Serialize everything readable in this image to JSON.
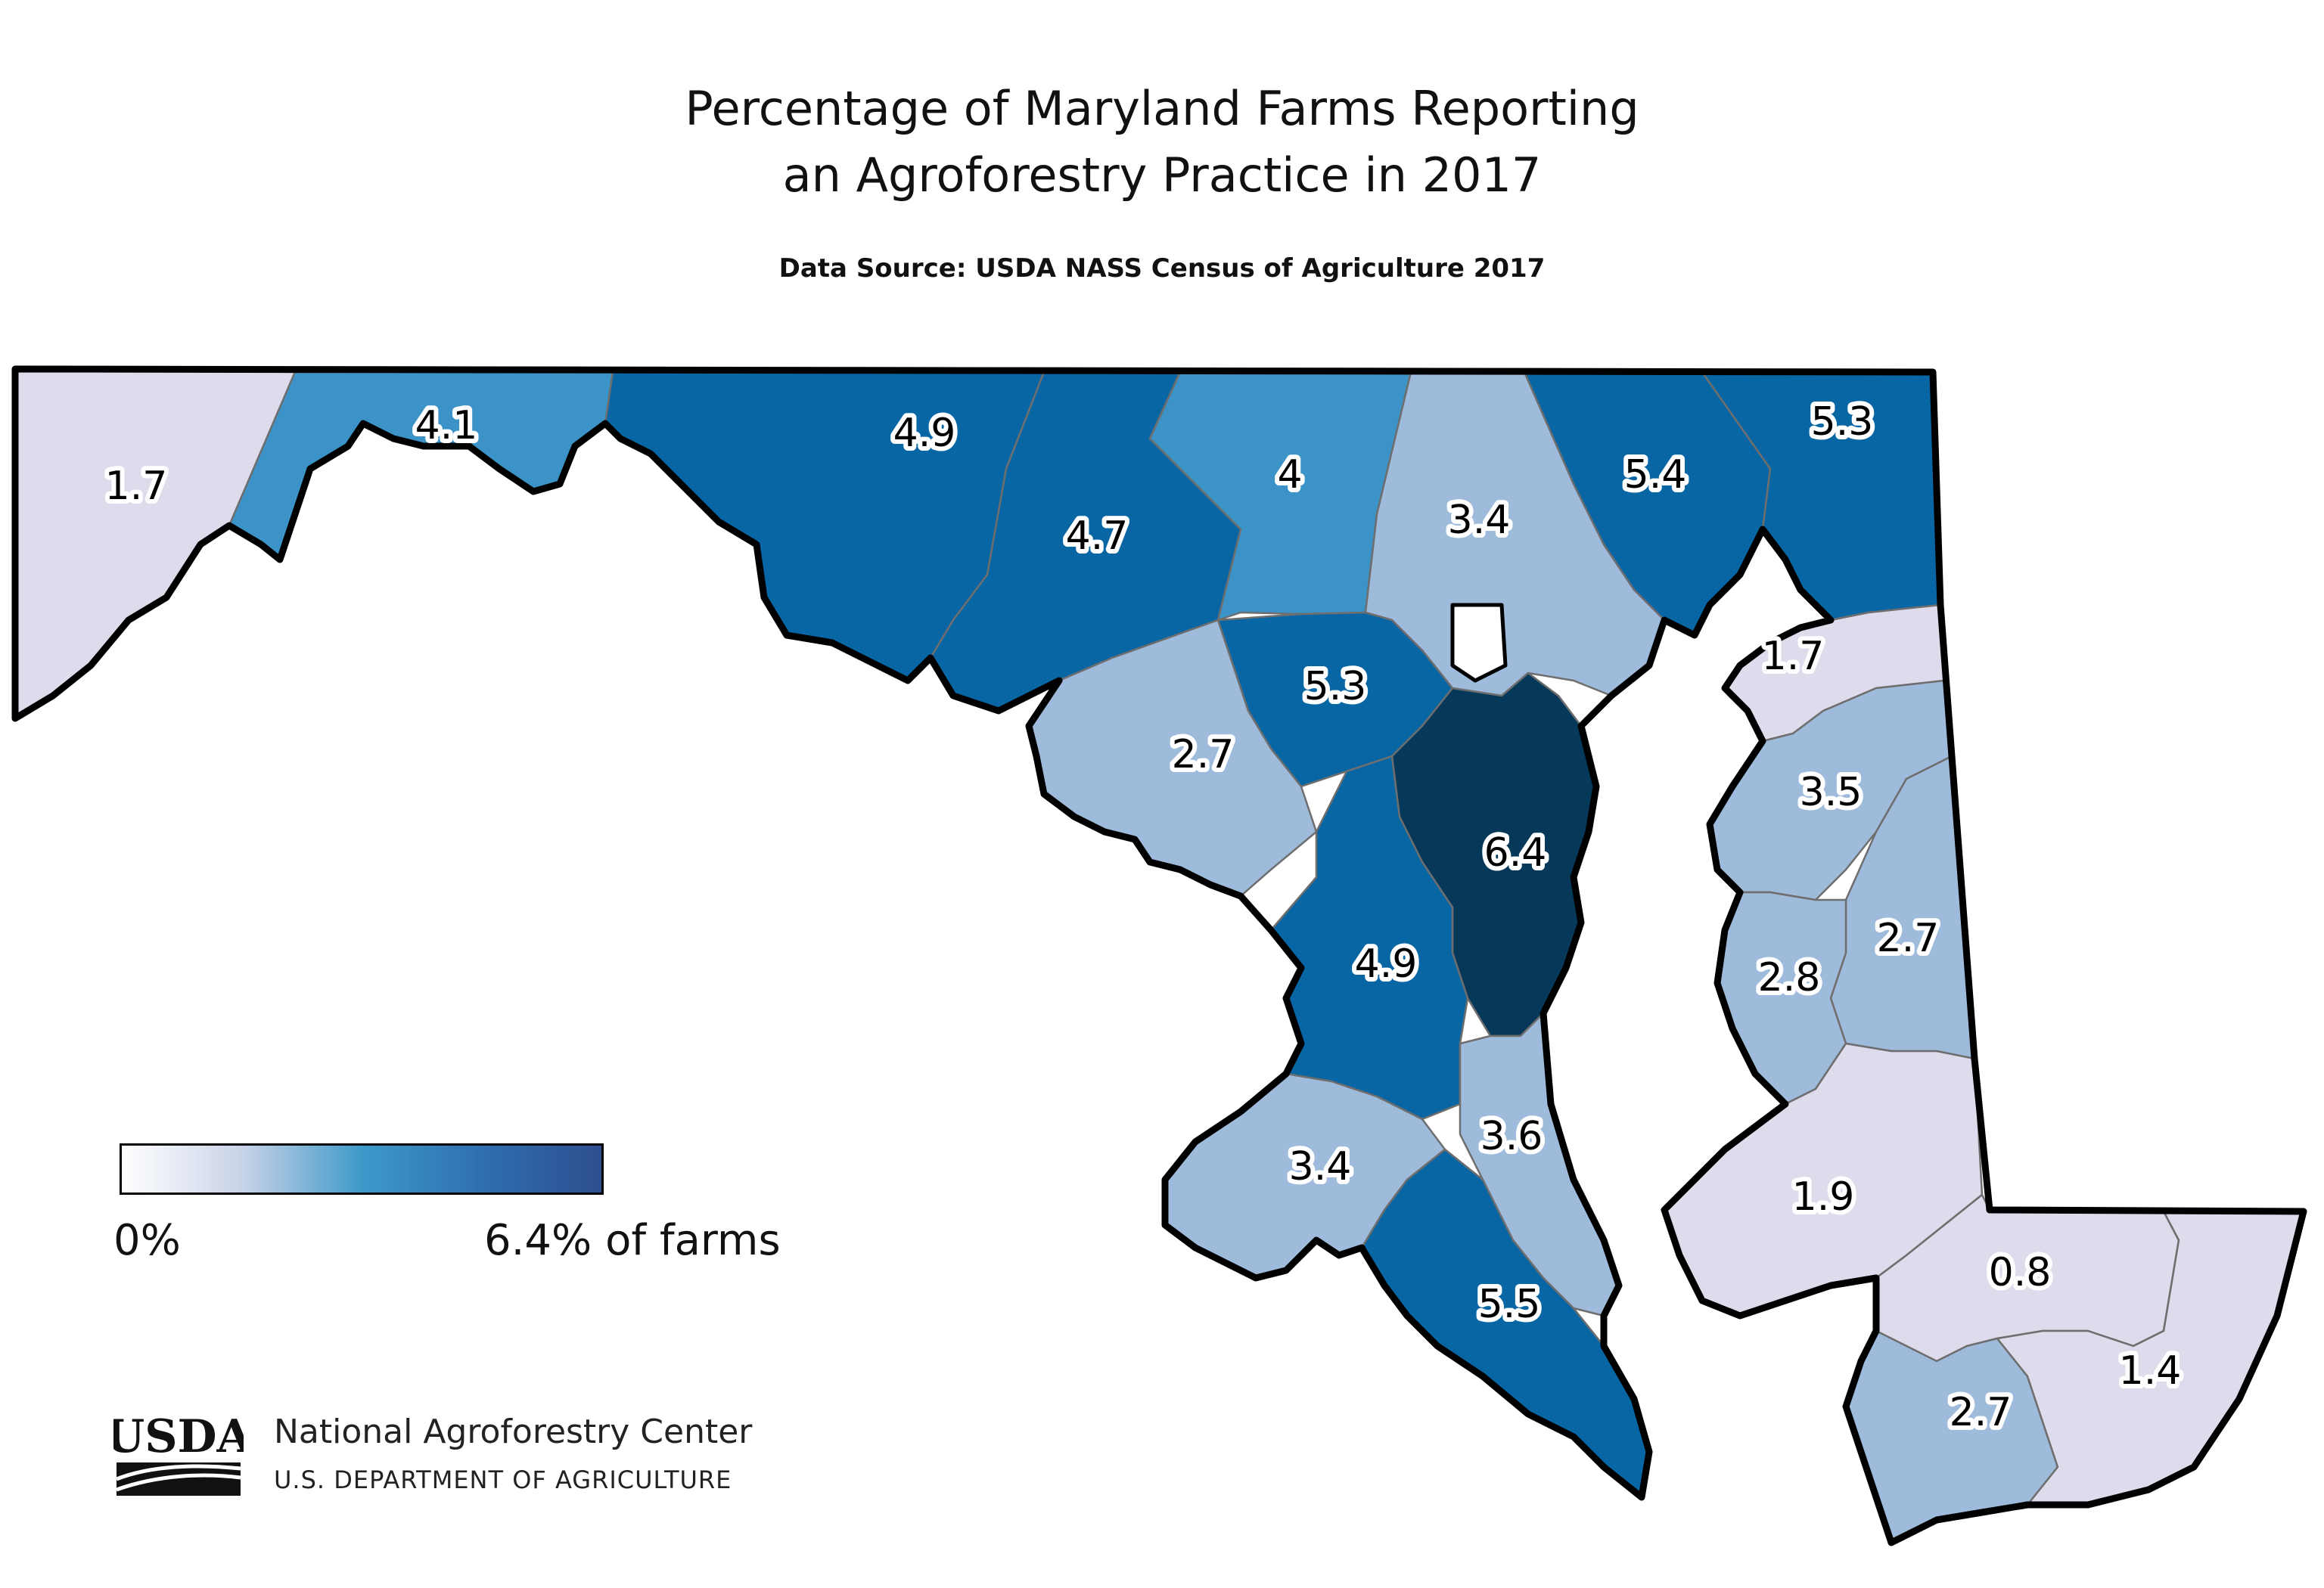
{
  "title_line1": "Percentage of Maryland Farms Reporting",
  "title_line2": "an Agroforestry Practice in 2017",
  "source": "Data Source: USDA NASS Census of Agriculture 2017",
  "legend": {
    "min_label": "0%",
    "max_label": "6.4% of farms",
    "min_color": "#ffffff",
    "mid_color": "#3d9ac9",
    "max_color": "#2e4f8f",
    "max_value": 6.4
  },
  "logo": {
    "wordmark": "USDA",
    "center_name": "National Agroforestry Center",
    "dept_name": "U.S. DEPARTMENT OF AGRICULTURE"
  },
  "colors": {
    "class_0_2": "#dddbec",
    "class_2_4": "#9fbbdc",
    "class_4_5": "#3b93c8",
    "class_4_9": "#0866a4",
    "class_6": "#053859",
    "no_data": "#ffffff",
    "border": "#000000"
  },
  "counties": [
    {
      "id": "garrett",
      "value": 1.7,
      "label": "1.7"
    },
    {
      "id": "allegany",
      "value": 4.1,
      "label": "4.1"
    },
    {
      "id": "washington",
      "value": 4.9,
      "label": "4.9"
    },
    {
      "id": "frederick",
      "value": 4.7,
      "label": "4.7"
    },
    {
      "id": "carroll",
      "value": 4,
      "label": "4"
    },
    {
      "id": "baltimore",
      "value": 3.4,
      "label": "3.4"
    },
    {
      "id": "harford",
      "value": 5.4,
      "label": "5.4"
    },
    {
      "id": "cecil",
      "value": 5.3,
      "label": "5.3"
    },
    {
      "id": "howard",
      "value": 5.3,
      "label": "5.3"
    },
    {
      "id": "montgomery",
      "value": 2.7,
      "label": "2.7"
    },
    {
      "id": "anne-arundel",
      "value": 6.4,
      "label": "6.4"
    },
    {
      "id": "prince-georges",
      "value": 4.9,
      "label": "4.9"
    },
    {
      "id": "charles",
      "value": 3.4,
      "label": "3.4"
    },
    {
      "id": "calvert",
      "value": 3.6,
      "label": "3.6"
    },
    {
      "id": "st-marys",
      "value": 5.5,
      "label": "5.5"
    },
    {
      "id": "kent",
      "value": 1.7,
      "label": "1.7"
    },
    {
      "id": "queen-annes",
      "value": 3.5,
      "label": "3.5"
    },
    {
      "id": "caroline",
      "value": 2.7,
      "label": "2.7"
    },
    {
      "id": "talbot",
      "value": 2.8,
      "label": "2.8"
    },
    {
      "id": "dorchester",
      "value": 1.9,
      "label": "1.9"
    },
    {
      "id": "wicomico",
      "value": 0.8,
      "label": "0.8"
    },
    {
      "id": "somerset",
      "value": 2.7,
      "label": "2.7"
    },
    {
      "id": "worcester",
      "value": 1.4,
      "label": "1.4"
    },
    {
      "id": "baltimore-city",
      "value": null,
      "label": ""
    }
  ]
}
